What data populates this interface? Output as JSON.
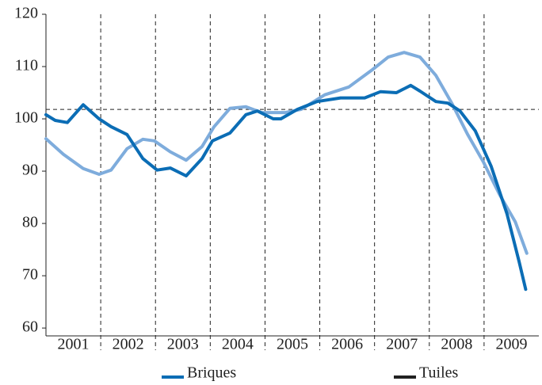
{
  "chart_data": {
    "type": "line",
    "categories": [
      "2001",
      "2002",
      "2003",
      "2004",
      "2005",
      "2006",
      "2007",
      "2008",
      "2009"
    ],
    "xlim": [
      2001,
      2010
    ],
    "xticks": [
      2002,
      2003,
      2004,
      2005,
      2006,
      2007,
      2008,
      2009
    ],
    "ylim": [
      58.5,
      120
    ],
    "yticks": [
      60,
      70,
      80,
      90,
      100,
      110,
      120
    ],
    "reference": 101.8,
    "series": [
      {
        "name": "Briques",
        "color": "#0b6db5",
        "legend_color": "#0b6db5",
        "x": [
          2001.0,
          2001.17,
          2001.39,
          2001.68,
          2001.97,
          2002.19,
          2002.48,
          2002.77,
          2003.03,
          2003.27,
          2003.56,
          2003.85,
          2004.04,
          2004.36,
          2004.65,
          2004.86,
          2005.15,
          2005.29,
          2005.59,
          2005.95,
          2006.38,
          2006.82,
          2007.11,
          2007.4,
          2007.66,
          2007.83,
          2008.12,
          2008.34,
          2008.56,
          2008.84,
          2009.13,
          2009.42,
          2009.64,
          2009.76
        ],
        "values": [
          100.8,
          99.7,
          99.3,
          102.7,
          100,
          98.5,
          97,
          92.4,
          90.2,
          90.6,
          89.1,
          92.4,
          95.8,
          97.3,
          100.8,
          101.5,
          100,
          100,
          101.8,
          103.3,
          104,
          104,
          105.2,
          105,
          106.4,
          105.3,
          103.3,
          103,
          101.5,
          97.7,
          90.9,
          81.8,
          72.7,
          67.4
        ]
      },
      {
        "name": "Tuiles",
        "color": "#7eacdc",
        "legend_color": "#222222",
        "x": [
          2001.0,
          2001.32,
          2001.68,
          2001.97,
          2002.19,
          2002.48,
          2002.77,
          2002.98,
          2003.27,
          2003.56,
          2003.85,
          2004.07,
          2004.36,
          2004.65,
          2004.94,
          2005.37,
          2005.66,
          2006.09,
          2006.53,
          2006.96,
          2007.25,
          2007.54,
          2007.83,
          2008.12,
          2008.41,
          2008.7,
          2008.99,
          2009.28,
          2009.57,
          2009.78
        ],
        "values": [
          96.2,
          93.2,
          90.5,
          89.4,
          90.2,
          94.3,
          96.1,
          95.8,
          93.7,
          92.1,
          94.7,
          98.5,
          102,
          102.3,
          101.2,
          101.2,
          101.8,
          104.6,
          106.1,
          109.4,
          111.8,
          112.7,
          111.8,
          108.3,
          103,
          97,
          91.7,
          85.6,
          80.3,
          74.3
        ]
      }
    ]
  }
}
